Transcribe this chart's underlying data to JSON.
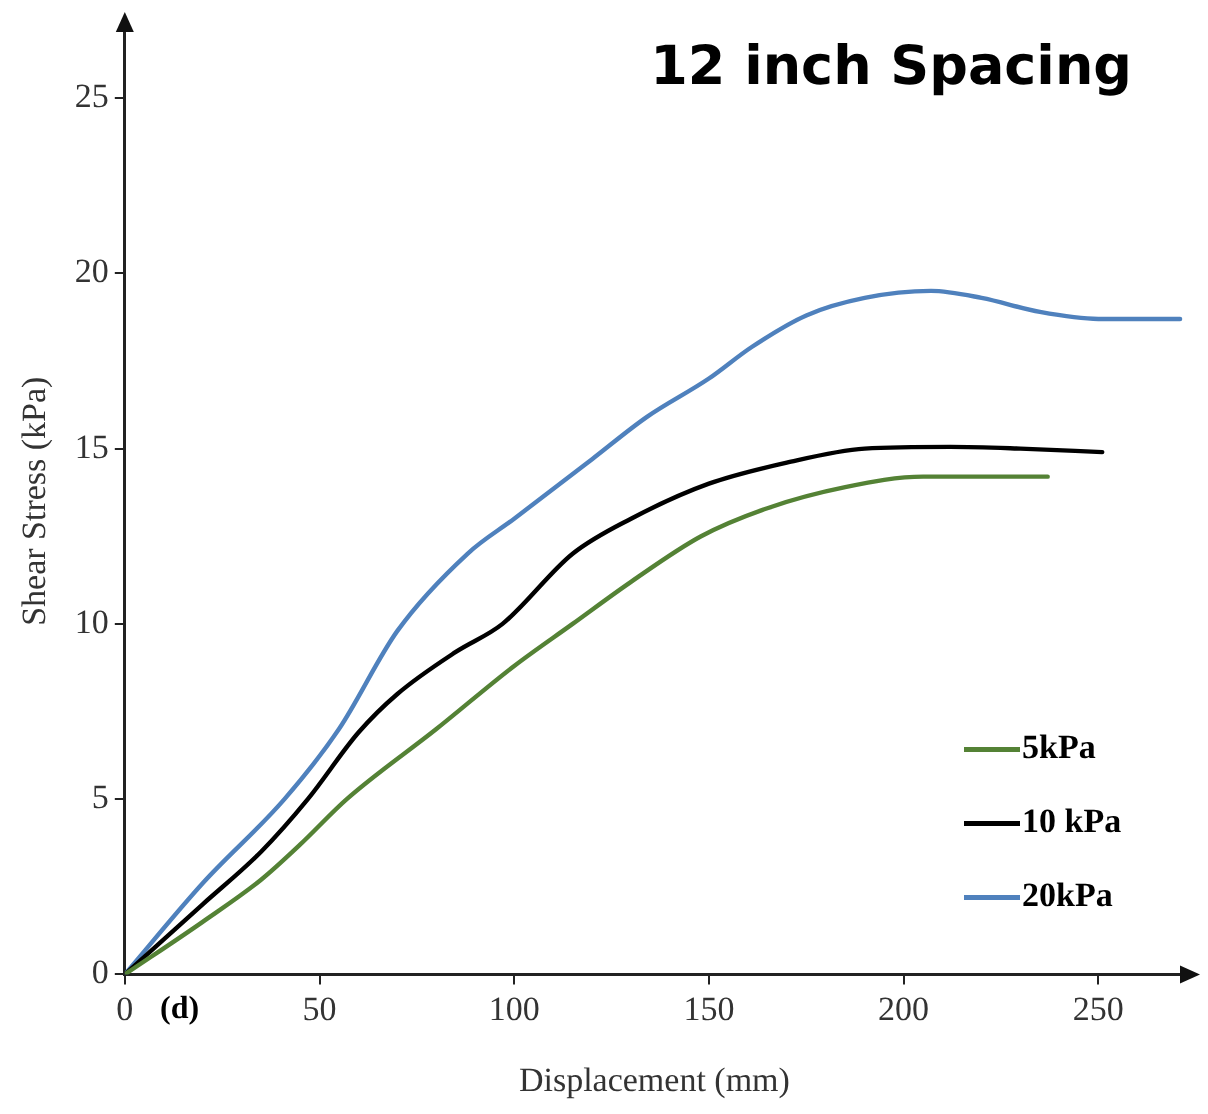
{
  "chart_data": {
    "type": "line",
    "title": "12 inch Spacing",
    "xlabel": "Displacement (mm)",
    "ylabel": "Shear Stress (kPa)",
    "annotations": [
      "(d)"
    ],
    "xlim": [
      0,
      272
    ],
    "ylim": [
      0,
      27
    ],
    "xticks": [
      0,
      50,
      100,
      150,
      200,
      250
    ],
    "yticks": [
      0,
      5,
      10,
      15,
      20,
      25
    ],
    "grid": false,
    "legend": "bottom right",
    "marker": "none",
    "line_style": "solid",
    "series": [
      {
        "name": "5kPa",
        "color": "#548235",
        "x": [
          0,
          20,
          35,
          45,
          57,
          80,
          100,
          115,
          130,
          148,
          165,
          185,
          205,
          237
        ],
        "values": [
          0,
          1.5,
          2.7,
          3.7,
          5,
          7,
          8.8,
          10,
          11.2,
          12.5,
          13.3,
          13.9,
          14.2,
          14.2
        ]
      },
      {
        "name": "10 kPa",
        "color": "#000000",
        "x": [
          0,
          20,
          35,
          47,
          60,
          70,
          85,
          97,
          115,
          130,
          150,
          170,
          190,
          212,
          230,
          251
        ],
        "values": [
          0,
          2,
          3.5,
          5,
          6.9,
          8,
          9.2,
          10,
          12,
          13,
          14,
          14.6,
          15,
          15.05,
          15,
          14.9
        ]
      },
      {
        "name": "20kPa",
        "color": "#4f81bd",
        "x": [
          0,
          20,
          41,
          55,
          70,
          88,
          100,
          120,
          134,
          150,
          161,
          175,
          190,
          207,
          220,
          235,
          250,
          271
        ],
        "values": [
          0,
          2.6,
          5,
          7,
          9.8,
          12,
          13,
          14.7,
          15.9,
          17,
          17.9,
          18.8,
          19.3,
          19.5,
          19.3,
          18.9,
          18.7,
          18.7
        ]
      }
    ]
  }
}
